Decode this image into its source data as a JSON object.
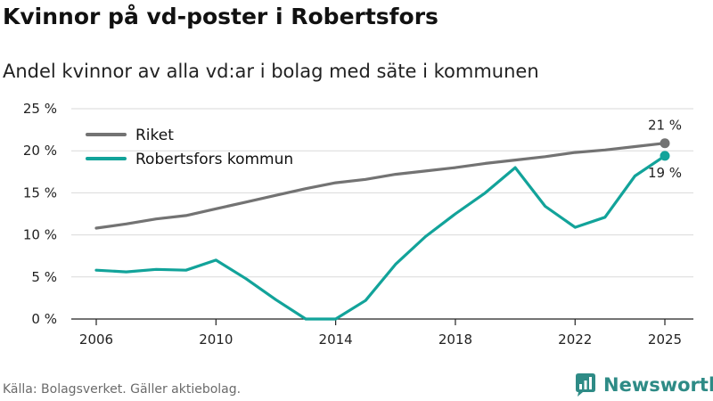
{
  "title": "Kvinnor på vd-poster i Robertsfors",
  "subtitle": "Andel kvinnor av alla vd:ar i bolag med säte i kommunen",
  "source": "Källa: Bolagsverket. Gäller aktiebolag.",
  "brand": "Newsworthy",
  "colors": {
    "riket": "#737373",
    "kommun": "#12a39a",
    "grid": "#d9d9d9",
    "axis": "#222222",
    "brand": "#2e8b86"
  },
  "chart_data": {
    "type": "line",
    "title": "Kvinnor på vd-poster i Robertsfors",
    "subtitle": "Andel kvinnor av alla vd:ar i bolag med säte i kommunen",
    "xlabel": "",
    "ylabel": "",
    "x": [
      2006,
      2007,
      2008,
      2009,
      2010,
      2011,
      2012,
      2013,
      2014,
      2015,
      2016,
      2017,
      2018,
      2019,
      2020,
      2021,
      2022,
      2023,
      2024,
      2025
    ],
    "xticks": [
      2006,
      2010,
      2014,
      2018,
      2022,
      2025
    ],
    "ylim": [
      0,
      25
    ],
    "yticks": [
      0,
      5,
      10,
      15,
      20,
      25
    ],
    "ytick_labels": [
      "0 %",
      "5 %",
      "10 %",
      "15 %",
      "20 %",
      "25 %"
    ],
    "grid": true,
    "legend_position": "top-left",
    "series": [
      {
        "name": "Riket",
        "key": "riket",
        "values": [
          10.8,
          11.3,
          11.9,
          12.3,
          13.1,
          13.9,
          14.7,
          15.5,
          16.2,
          16.6,
          17.2,
          17.6,
          18.0,
          18.5,
          18.9,
          19.3,
          19.8,
          20.1,
          20.5,
          20.9
        ],
        "end_label": "21 %"
      },
      {
        "name": "Robertsfors kommun",
        "key": "kommun",
        "values": [
          5.8,
          5.6,
          5.9,
          5.8,
          7.0,
          4.8,
          2.3,
          0.0,
          0.0,
          2.2,
          6.5,
          9.8,
          12.5,
          15.0,
          18.0,
          13.4,
          10.9,
          12.1,
          17.0,
          19.4
        ],
        "end_label": "19 %"
      }
    ]
  }
}
